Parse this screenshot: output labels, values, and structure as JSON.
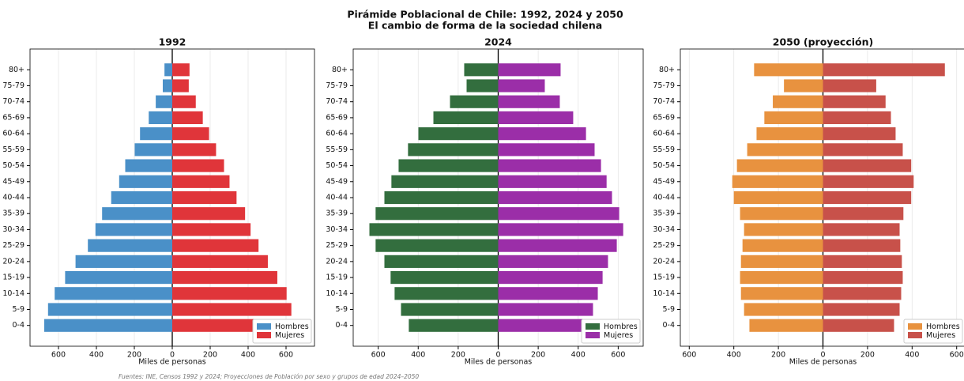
{
  "title": "Pirámide Poblacional de Chile: 1992, 2024 y 2050",
  "subtitle": "El cambio de forma de la sociedad chilena",
  "source": "Fuentes: INE, Censos 1992 y 2024; Proyecciones de Población por sexo y grupos de edad 2024–2050",
  "chart_data": [
    {
      "type": "bar",
      "title": "1992",
      "xlabel": "Miles de personas",
      "grid": true,
      "legend": "lower right",
      "categories": [
        "0-4",
        "5-9",
        "10-14",
        "15-19",
        "20-24",
        "25-29",
        "30-34",
        "35-39",
        "40-44",
        "45-49",
        "50-54",
        "55-59",
        "60-64",
        "65-69",
        "70-74",
        "75-79",
        "80+"
      ],
      "series": [
        {
          "name": "Hombres",
          "color": "#4a90c8",
          "values": [
            -675,
            -655,
            -620,
            -565,
            -510,
            -445,
            -405,
            -370,
            -322,
            -280,
            -248,
            -198,
            -170,
            -124,
            -87,
            -50,
            -41
          ]
        },
        {
          "name": "Mujeres",
          "color": "#e0353a",
          "values": [
            653,
            628,
            603,
            554,
            504,
            455,
            413,
            384,
            339,
            302,
            273,
            231,
            194,
            161,
            124,
            87,
            91
          ]
        }
      ],
      "xlim": [
        -750,
        750
      ],
      "xticks": [
        {
          "value": -600,
          "label": "600"
        },
        {
          "value": -400,
          "label": "400"
        },
        {
          "value": -200,
          "label": "200"
        },
        0,
        200,
        400,
        600
      ]
    },
    {
      "type": "bar",
      "title": "2024",
      "xlabel": "Miles de personas",
      "grid": true,
      "legend": "lower right",
      "categories": [
        "0-4",
        "5-9",
        "10-14",
        "15-19",
        "20-24",
        "25-29",
        "30-34",
        "35-39",
        "40-44",
        "45-49",
        "50-54",
        "55-59",
        "60-64",
        "65-69",
        "70-74",
        "75-79",
        "80+"
      ],
      "series": [
        {
          "name": "Hombres",
          "color": "#336e3e",
          "values": [
            -447,
            -486,
            -518,
            -538,
            -569,
            -613,
            -644,
            -613,
            -569,
            -534,
            -498,
            -451,
            -399,
            -324,
            -241,
            -158,
            -170
          ]
        },
        {
          "name": "Mujeres",
          "color": "#9b2ea8",
          "values": [
            435,
            474,
            498,
            522,
            549,
            593,
            625,
            605,
            569,
            542,
            514,
            482,
            439,
            375,
            308,
            233,
            312
          ]
        }
      ],
      "xlim": [
        -725,
        725
      ],
      "xticks": [
        {
          "value": -600,
          "label": "600"
        },
        {
          "value": -400,
          "label": "400"
        },
        {
          "value": -200,
          "label": "200"
        },
        0,
        200,
        400,
        600
      ]
    },
    {
      "type": "bar",
      "title": "2050 (proyección)",
      "xlabel": "Miles de personas",
      "grid": true,
      "legend": "lower right",
      "categories": [
        "0-4",
        "5-9",
        "10-14",
        "15-19",
        "20-24",
        "25-29",
        "30-34",
        "35-39",
        "40-44",
        "45-49",
        "50-54",
        "55-59",
        "60-64",
        "65-69",
        "70-74",
        "75-79",
        "80+"
      ],
      "series": [
        {
          "name": "Hombres",
          "color": "#e8923f",
          "values": [
            -330,
            -354,
            -368,
            -372,
            -368,
            -361,
            -354,
            -372,
            -400,
            -407,
            -386,
            -340,
            -298,
            -263,
            -225,
            -175,
            -309
          ]
        },
        {
          "name": "Mujeres",
          "color": "#c8514a",
          "values": [
            319,
            344,
            351,
            358,
            354,
            347,
            344,
            361,
            396,
            407,
            396,
            358,
            326,
            305,
            281,
            239,
            547
          ]
        }
      ],
      "xlim": [
        -640,
        640
      ],
      "xticks": [
        {
          "value": -600,
          "label": "600"
        },
        {
          "value": -400,
          "label": "400"
        },
        {
          "value": -200,
          "label": "200"
        },
        0,
        200,
        400,
        600
      ]
    }
  ]
}
